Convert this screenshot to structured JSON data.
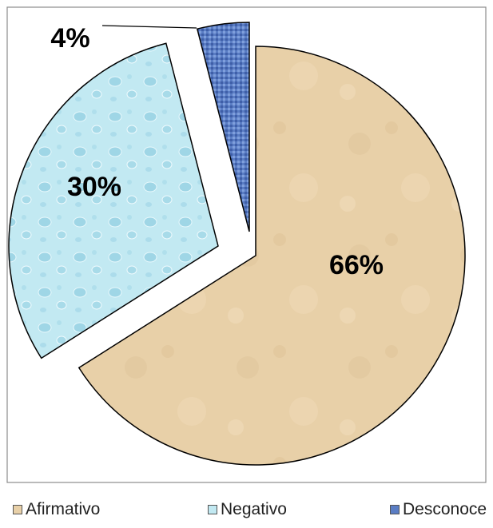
{
  "chart_data": {
    "type": "pie",
    "categories": [
      "Afirmativo",
      "Negativo",
      "Desconoce"
    ],
    "values": [
      66,
      30,
      4
    ],
    "data_labels": [
      "66%",
      "30%",
      "4%"
    ],
    "colors": [
      "#e8d0a8",
      "#c2e9f2",
      "#5a7dc4"
    ],
    "exploded": true,
    "legend_position": "bottom",
    "title": ""
  },
  "legend": {
    "items": [
      {
        "label": "Afirmativo",
        "color": "#e8d0a8"
      },
      {
        "label": "Negativo",
        "color": "#c2e9f2"
      },
      {
        "label": "Desconoce",
        "color": "#5a7dc4"
      }
    ]
  }
}
